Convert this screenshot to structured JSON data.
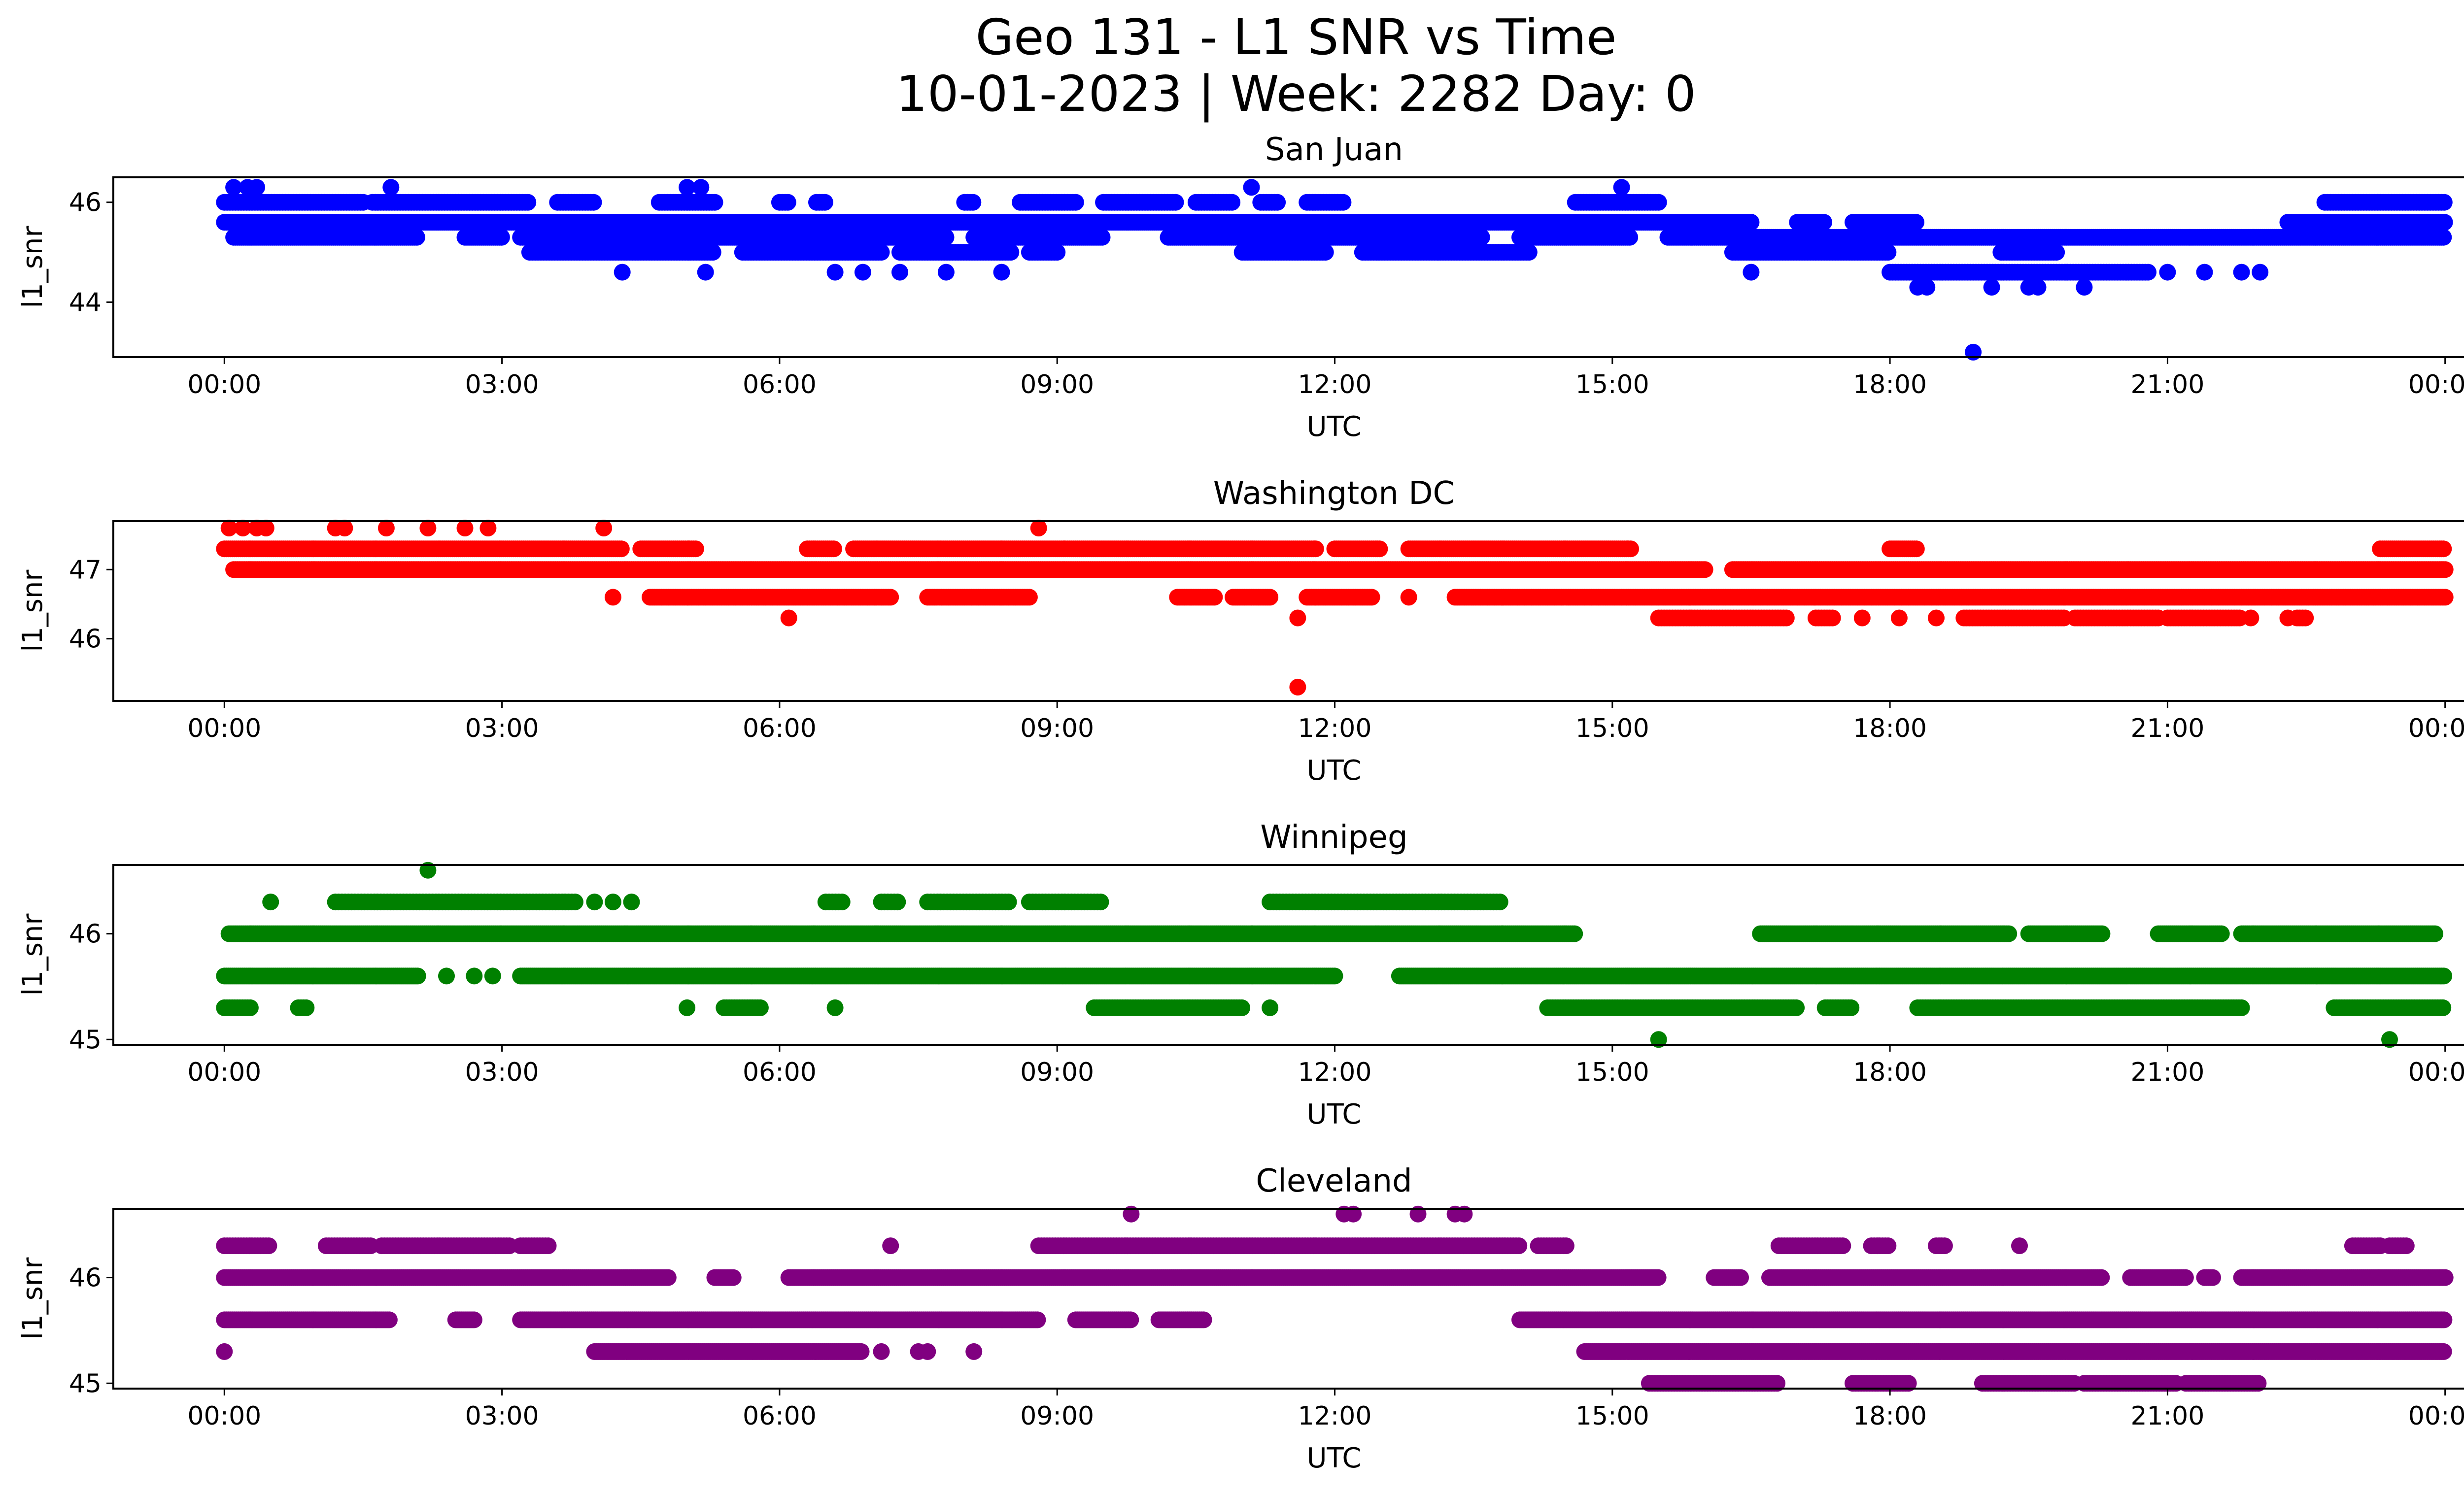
{
  "figure": {
    "title_line1": "Geo 131 - L1 SNR vs Time",
    "title_line2": "10-01-2023 | Week: 2282 Day: 0"
  },
  "chart_data": [
    {
      "type": "scatter",
      "title": "San Juan",
      "xlabel": "UTC",
      "ylabel": "l1_snr",
      "color": "#0000ff",
      "xlim": [
        -1.2,
        25.2
      ],
      "ylim": [
        42.9,
        46.5
      ],
      "xticks": [
        "00:00",
        "03:00",
        "06:00",
        "09:00",
        "12:00",
        "15:00",
        "18:00",
        "21:00",
        "00:00"
      ],
      "yticks": [
        44,
        46
      ],
      "bands": [
        {
          "y": 46.0,
          "segments": [
            [
              0,
              1.5
            ],
            [
              1.6,
              3.3
            ],
            [
              3.6,
              4.0
            ],
            [
              4.7,
              5.3
            ],
            [
              6.0,
              6.1
            ],
            [
              6.4,
              6.5
            ],
            [
              8.0,
              8.1
            ],
            [
              8.6,
              9.2
            ],
            [
              9.5,
              10.3
            ],
            [
              10.5,
              10.9
            ],
            [
              11.2,
              11.4
            ],
            [
              11.7,
              12.1
            ],
            [
              14.6,
              15.5
            ],
            [
              22.7,
              24.0
            ]
          ],
          "step": 0.03
        },
        {
          "y": 45.6,
          "segments": [
            [
              0,
              16.5
            ],
            [
              17.0,
              17.3
            ],
            [
              17.6,
              18.3
            ],
            [
              22.3,
              24.0
            ]
          ],
          "step": 0.022
        },
        {
          "y": 45.3,
          "segments": [
            [
              0.1,
              2.1
            ],
            [
              2.6,
              3.0
            ],
            [
              3.2,
              7.8
            ],
            [
              8.1,
              9.5
            ],
            [
              10.2,
              13.6
            ],
            [
              14.0,
              15.2
            ],
            [
              15.6,
              24.0
            ]
          ],
          "step": 0.022
        },
        {
          "y": 45.0,
          "segments": [
            [
              3.3,
              5.3
            ],
            [
              5.6,
              7.1
            ],
            [
              7.3,
              8.5
            ],
            [
              8.7,
              9.0
            ],
            [
              11.0,
              11.9
            ],
            [
              12.3,
              14.1
            ],
            [
              16.3,
              18.0
            ],
            [
              19.2,
              19.8
            ]
          ],
          "step": 0.03
        },
        {
          "y": 44.6,
          "segments": [
            [
              18.0,
              20.8
            ]
          ],
          "step": 0.03
        }
      ],
      "points": [
        {
          "x": 0.1,
          "y": 46.3
        },
        {
          "x": 0.25,
          "y": 46.3
        },
        {
          "x": 0.35,
          "y": 46.3
        },
        {
          "x": 1.8,
          "y": 46.3
        },
        {
          "x": 5.0,
          "y": 46.3
        },
        {
          "x": 5.15,
          "y": 46.3
        },
        {
          "x": 11.1,
          "y": 46.3
        },
        {
          "x": 15.1,
          "y": 46.3
        },
        {
          "x": 4.3,
          "y": 44.6
        },
        {
          "x": 5.2,
          "y": 44.6
        },
        {
          "x": 6.6,
          "y": 44.6
        },
        {
          "x": 6.9,
          "y": 44.6
        },
        {
          "x": 7.3,
          "y": 44.6
        },
        {
          "x": 7.8,
          "y": 44.6
        },
        {
          "x": 8.4,
          "y": 44.6
        },
        {
          "x": 16.5,
          "y": 44.6
        },
        {
          "x": 21.0,
          "y": 44.6
        },
        {
          "x": 21.4,
          "y": 44.6
        },
        {
          "x": 21.8,
          "y": 44.6
        },
        {
          "x": 22.0,
          "y": 44.6
        },
        {
          "x": 18.3,
          "y": 44.3
        },
        {
          "x": 18.4,
          "y": 44.3
        },
        {
          "x": 19.1,
          "y": 44.3
        },
        {
          "x": 19.5,
          "y": 44.3
        },
        {
          "x": 19.6,
          "y": 44.3
        },
        {
          "x": 20.1,
          "y": 44.3
        },
        {
          "x": 18.9,
          "y": 43.0
        }
      ]
    },
    {
      "type": "scatter",
      "title": "Washington DC",
      "xlabel": "UTC",
      "ylabel": "l1_snr",
      "color": "#ff0000",
      "xlim": [
        -1.2,
        25.2
      ],
      "ylim": [
        45.1,
        47.7
      ],
      "xticks": [
        "00:00",
        "03:00",
        "06:00",
        "09:00",
        "12:00",
        "15:00",
        "18:00",
        "21:00",
        "00:00"
      ],
      "yticks": [
        46,
        47
      ],
      "bands": [
        {
          "y": 47.3,
          "segments": [
            [
              0,
              4.3
            ],
            [
              4.5,
              5.1
            ],
            [
              6.3,
              6.6
            ],
            [
              6.8,
              11.8
            ],
            [
              12.0,
              12.5
            ],
            [
              12.8,
              15.2
            ],
            [
              18.0,
              18.3
            ],
            [
              23.3,
              24.0
            ]
          ],
          "step": 0.022
        },
        {
          "y": 47.0,
          "segments": [
            [
              0.1,
              16.0
            ],
            [
              16.3,
              24.0
            ]
          ],
          "step": 0.02
        },
        {
          "y": 46.6,
          "segments": [
            [
              4.6,
              7.2
            ],
            [
              7.6,
              8.7
            ],
            [
              10.3,
              10.7
            ],
            [
              10.9,
              11.3
            ],
            [
              11.7,
              12.4
            ],
            [
              13.3,
              24.0
            ]
          ],
          "step": 0.025
        },
        {
          "y": 46.3,
          "segments": [
            [
              15.5,
              16.9
            ],
            [
              17.2,
              17.4
            ],
            [
              18.8,
              19.9
            ],
            [
              20.0,
              20.9
            ],
            [
              21.0,
              21.8
            ],
            [
              22.4,
              22.5
            ]
          ],
          "step": 0.03
        }
      ],
      "points": [
        {
          "x": 0.05,
          "y": 47.6
        },
        {
          "x": 0.2,
          "y": 47.6
        },
        {
          "x": 0.35,
          "y": 47.6
        },
        {
          "x": 0.45,
          "y": 47.6
        },
        {
          "x": 1.2,
          "y": 47.6
        },
        {
          "x": 1.3,
          "y": 47.6
        },
        {
          "x": 1.75,
          "y": 47.6
        },
        {
          "x": 2.2,
          "y": 47.6
        },
        {
          "x": 2.6,
          "y": 47.6
        },
        {
          "x": 2.85,
          "y": 47.6
        },
        {
          "x": 4.1,
          "y": 47.6
        },
        {
          "x": 8.8,
          "y": 47.6
        },
        {
          "x": 4.2,
          "y": 46.6
        },
        {
          "x": 12.8,
          "y": 46.6
        },
        {
          "x": 6.1,
          "y": 46.3
        },
        {
          "x": 11.6,
          "y": 46.3
        },
        {
          "x": 17.7,
          "y": 46.3
        },
        {
          "x": 18.1,
          "y": 46.3
        },
        {
          "x": 18.5,
          "y": 46.3
        },
        {
          "x": 21.9,
          "y": 46.3
        },
        {
          "x": 22.3,
          "y": 46.3
        },
        {
          "x": 11.6,
          "y": 45.3
        }
      ]
    },
    {
      "type": "scatter",
      "title": "Winnipeg",
      "xlabel": "UTC",
      "ylabel": "l1_snr",
      "color": "#008000",
      "xlim": [
        -1.2,
        25.2
      ],
      "ylim": [
        44.95,
        46.65
      ],
      "xticks": [
        "00:00",
        "03:00",
        "06:00",
        "09:00",
        "12:00",
        "15:00",
        "18:00",
        "21:00",
        "00:00"
      ],
      "yticks": [
        45,
        46
      ],
      "bands": [
        {
          "y": 46.3,
          "segments": [
            [
              1.2,
              3.8
            ],
            [
              6.5,
              6.7
            ],
            [
              7.1,
              7.3
            ],
            [
              7.6,
              8.5
            ],
            [
              8.7,
              9.5
            ],
            [
              11.3,
              13.8
            ]
          ],
          "step": 0.035
        },
        {
          "y": 46.0,
          "segments": [
            [
              0.05,
              14.6
            ],
            [
              16.6,
              19.3
            ],
            [
              19.5,
              20.3
            ],
            [
              20.9,
              21.6
            ],
            [
              21.8,
              23.9
            ]
          ],
          "step": 0.022
        },
        {
          "y": 45.6,
          "segments": [
            [
              0,
              2.1
            ],
            [
              3.2,
              12.0
            ],
            [
              12.7,
              24.0
            ]
          ],
          "step": 0.022
        },
        {
          "y": 45.3,
          "segments": [
            [
              0,
              0.3
            ],
            [
              0.8,
              0.9
            ],
            [
              5.4,
              5.8
            ],
            [
              9.4,
              11.0
            ],
            [
              14.3,
              17.0
            ],
            [
              17.3,
              17.6
            ],
            [
              18.3,
              21.8
            ],
            [
              22.8,
              24.0
            ]
          ],
          "step": 0.028
        }
      ],
      "points": [
        {
          "x": 2.2,
          "y": 46.6
        },
        {
          "x": 0.5,
          "y": 46.3
        },
        {
          "x": 4.0,
          "y": 46.3
        },
        {
          "x": 4.2,
          "y": 46.3
        },
        {
          "x": 4.4,
          "y": 46.3
        },
        {
          "x": 2.4,
          "y": 45.6
        },
        {
          "x": 2.7,
          "y": 45.6
        },
        {
          "x": 2.9,
          "y": 45.6
        },
        {
          "x": 5.0,
          "y": 45.3
        },
        {
          "x": 6.6,
          "y": 45.3
        },
        {
          "x": 11.3,
          "y": 45.3
        },
        {
          "x": 15.5,
          "y": 45.0
        },
        {
          "x": 23.4,
          "y": 45.0
        }
      ]
    },
    {
      "type": "scatter",
      "title": "Cleveland",
      "xlabel": "UTC",
      "ylabel": "l1_snr",
      "color": "#800080",
      "xlim": [
        -1.2,
        25.2
      ],
      "ylim": [
        44.95,
        46.65
      ],
      "xticks": [
        "00:00",
        "03:00",
        "06:00",
        "09:00",
        "12:00",
        "15:00",
        "18:00",
        "21:00",
        "00:00"
      ],
      "yticks": [
        45,
        46
      ],
      "bands": [
        {
          "y": 46.3,
          "segments": [
            [
              0,
              0.5
            ],
            [
              1.1,
              1.6
            ],
            [
              1.7,
              3.1
            ],
            [
              3.2,
              3.5
            ],
            [
              8.8,
              14.0
            ],
            [
              14.2,
              14.5
            ],
            [
              16.8,
              17.5
            ],
            [
              17.8,
              18.0
            ],
            [
              18.5,
              18.6
            ],
            [
              23.0,
              23.3
            ],
            [
              23.4,
              23.6
            ]
          ],
          "step": 0.03
        },
        {
          "y": 46.0,
          "segments": [
            [
              0,
              4.8
            ],
            [
              5.3,
              5.5
            ],
            [
              6.1,
              15.5
            ],
            [
              16.1,
              16.4
            ],
            [
              16.7,
              20.3
            ],
            [
              20.6,
              21.2
            ],
            [
              21.4,
              21.5
            ],
            [
              21.8,
              24.0
            ]
          ],
          "step": 0.022
        },
        {
          "y": 45.6,
          "segments": [
            [
              0,
              1.8
            ],
            [
              2.5,
              2.7
            ],
            [
              3.2,
              8.8
            ],
            [
              9.2,
              9.8
            ],
            [
              10.1,
              10.6
            ],
            [
              14.0,
              24.0
            ]
          ],
          "step": 0.022
        },
        {
          "y": 45.3,
          "segments": [
            [
              4.0,
              6.9
            ],
            [
              14.7,
              24.0
            ]
          ],
          "step": 0.022
        },
        {
          "y": 45.0,
          "segments": [
            [
              15.4,
              16.8
            ],
            [
              17.6,
              18.2
            ],
            [
              19.0,
              20.0
            ],
            [
              20.1,
              21.1
            ],
            [
              21.2,
              22.0
            ]
          ],
          "step": 0.03
        }
      ],
      "points": [
        {
          "x": 0.0,
          "y": 45.3
        },
        {
          "x": 7.1,
          "y": 45.3
        },
        {
          "x": 7.5,
          "y": 45.3
        },
        {
          "x": 7.6,
          "y": 45.3
        },
        {
          "x": 8.1,
          "y": 45.3
        },
        {
          "x": 7.2,
          "y": 46.3
        },
        {
          "x": 9.8,
          "y": 46.6
        },
        {
          "x": 12.1,
          "y": 46.6
        },
        {
          "x": 12.2,
          "y": 46.6
        },
        {
          "x": 12.9,
          "y": 46.6
        },
        {
          "x": 13.3,
          "y": 46.6
        },
        {
          "x": 13.4,
          "y": 46.6
        },
        {
          "x": 19.4,
          "y": 46.3
        }
      ]
    }
  ]
}
